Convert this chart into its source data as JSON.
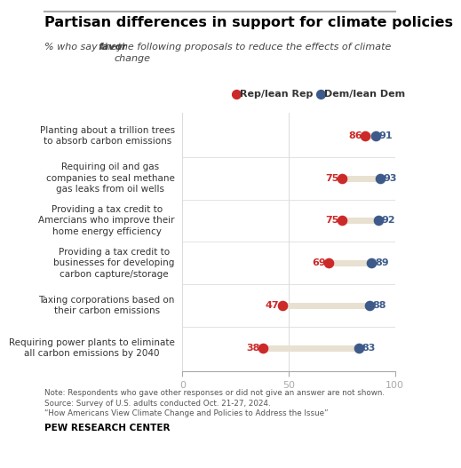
{
  "title": "Partisan differences in support for climate policies",
  "subtitle_normal1": "% who say they ",
  "subtitle_bold": "favor",
  "subtitle_normal2": " the following proposals to reduce the effects of climate\nchange",
  "legend_rep_label": "Rep/lean Rep",
  "legend_dem_label": "Dem/lean Dem",
  "rep_color": "#CC2929",
  "dem_color": "#3D5A8A",
  "connector_color": "#E8E0D0",
  "categories": [
    "Planting about a trillion trees\nto absorb carbon emissions",
    "Requiring oil and gas\ncompanies to seal methane\ngas leaks from oil wells",
    "Providing a tax credit to\nAmercians who improve their\nhome energy efficiency",
    "Providing a tax credit to\nbusinesses for developing\ncarbon capture/storage",
    "Taxing corporations based on\ntheir carbon emissions",
    "Requiring power plants to eliminate\nall carbon emissions by 2040"
  ],
  "rep_values": [
    86,
    75,
    75,
    69,
    47,
    38
  ],
  "dem_values": [
    91,
    93,
    92,
    89,
    88,
    83
  ],
  "note_line1": "Note: Respondents who gave other responses or did not give an answer are not shown.",
  "note_line2": "Source: Survey of U.S. adults conducted Oct. 21-27, 2024.",
  "note_line3": "“How Americans View Climate Change and Policies to Address the Issue”",
  "source_label": "PEW RESEARCH CENTER",
  "xlim": [
    0,
    100
  ],
  "background_color": "#FFFFFF"
}
